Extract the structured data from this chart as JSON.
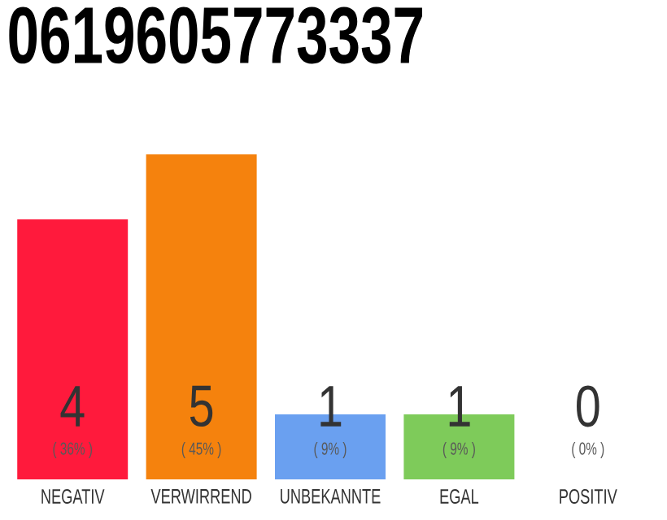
{
  "chart_data": {
    "type": "bar",
    "title": "0619605773337",
    "categories": [
      "NEGATIV",
      "VERWIRREND",
      "UNBEKANNTE",
      "EGAL",
      "POSITIV"
    ],
    "values": [
      4,
      5,
      1,
      1,
      0
    ],
    "colors": [
      "#ff1a3c",
      "#f5820d",
      "#6aa0f0",
      "#7ecb5a",
      "#d9d9d9"
    ],
    "value_labels": [
      "4",
      "5",
      "1",
      "1",
      "0"
    ],
    "annotations": [
      "( 36% )",
      "( 45% )",
      "( 9% )",
      "( 9% )",
      "( 0% )"
    ],
    "tick_labels": "x"
  }
}
